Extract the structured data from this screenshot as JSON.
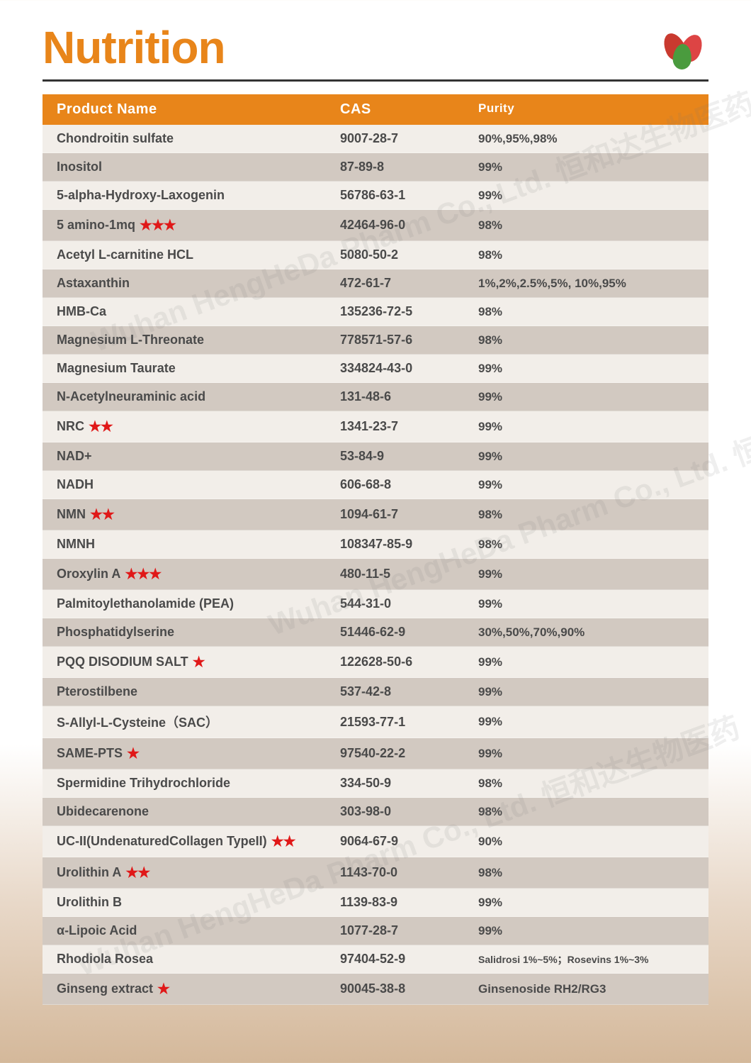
{
  "title": "Nutrition",
  "columns": {
    "name": "Product Name",
    "cas": "CAS",
    "purity": "Purity"
  },
  "colors": {
    "heading": "#e8851a",
    "header_bg": "#e8851a",
    "header_text": "#ffffff",
    "row_even": "#d2c9c1",
    "row_odd": "#f2eee9",
    "text": "#4a4a4a",
    "star": "#e01818",
    "rule": "#333333"
  },
  "typography": {
    "title_fontsize": 64,
    "header_fontsize": 20,
    "row_fontsize": 18
  },
  "star_glyph": "★",
  "watermark_text": "Wuhan HengHeDa Pharm Co., Ltd.  恒和达生物医药",
  "rows": [
    {
      "name": "Chondroitin sulfate",
      "stars": 0,
      "cas": "9007-28-7",
      "purity": "90%,95%,98%"
    },
    {
      "name": "Inositol",
      "stars": 0,
      "cas": "87-89-8",
      "purity": "99%"
    },
    {
      "name": "5-alpha-Hydroxy-Laxogenin",
      "stars": 0,
      "cas": "56786-63-1",
      "purity": "99%"
    },
    {
      "name": "5 amino-1mq",
      "stars": 3,
      "cas": "42464-96-0",
      "purity": "98%"
    },
    {
      "name": "Acetyl L-carnitine HCL",
      "stars": 0,
      "cas": "5080-50-2",
      "purity": "98%"
    },
    {
      "name": "Astaxanthin",
      "stars": 0,
      "cas": "472-61-7",
      "purity": "1%,2%,2.5%,5%, 10%,95%"
    },
    {
      "name": "HMB-Ca",
      "stars": 0,
      "cas": "135236-72-5",
      "purity": "98%"
    },
    {
      "name": "Magnesium L-Threonate",
      "stars": 0,
      "cas": "778571-57-6",
      "purity": "98%"
    },
    {
      "name": "Magnesium Taurate",
      "stars": 0,
      "cas": "334824-43-0",
      "purity": "99%"
    },
    {
      "name": "N-Acetylneuraminic acid",
      "stars": 0,
      "cas": "131-48-6",
      "purity": "99%"
    },
    {
      "name": "NRC",
      "stars": 2,
      "cas": "1341-23-7",
      "purity": "99%"
    },
    {
      "name": "NAD+",
      "stars": 0,
      "cas": "53-84-9",
      "purity": "99%"
    },
    {
      "name": "NADH",
      "stars": 0,
      "cas": "606-68-8",
      "purity": "99%"
    },
    {
      "name": "NMN",
      "stars": 2,
      "cas": "1094-61-7",
      "purity": "98%"
    },
    {
      "name": "NMNH",
      "stars": 0,
      "cas": "108347-85-9",
      "purity": "98%"
    },
    {
      "name": "Oroxylin A",
      "stars": 3,
      "cas": "480-11-5",
      "purity": "99%"
    },
    {
      "name": "Palmitoylethanolamide (PEA)",
      "stars": 0,
      "cas": "544-31-0",
      "purity": "99%"
    },
    {
      "name": "Phosphatidylserine",
      "stars": 0,
      "cas": "51446-62-9",
      "purity": "30%,50%,70%,90%"
    },
    {
      "name": "PQQ DISODIUM SALT",
      "stars": 1,
      "cas": "122628-50-6",
      "purity": "99%"
    },
    {
      "name": "Pterostilbene",
      "stars": 0,
      "cas": "537-42-8",
      "purity": "99%"
    },
    {
      "name": "S-Allyl-L-Cysteine（SAC）",
      "stars": 0,
      "cas": "21593-77-1",
      "purity": "99%"
    },
    {
      "name": "SAME-PTS",
      "stars": 1,
      "cas": "97540-22-2",
      "purity": "99%"
    },
    {
      "name": "Spermidine Trihydrochloride",
      "stars": 0,
      "cas": "334-50-9",
      "purity": "98%"
    },
    {
      "name": "Ubidecarenone",
      "stars": 0,
      "cas": "303-98-0",
      "purity": "98%"
    },
    {
      "name": "UC-II(UndenaturedCollagen TypeII)",
      "stars": 2,
      "cas": "9064-67-9",
      "purity": "90%"
    },
    {
      "name": "Urolithin A",
      "stars": 2,
      "cas": "1143-70-0",
      "purity": "98%"
    },
    {
      "name": "Urolithin B",
      "stars": 0,
      "cas": "1139-83-9",
      "purity": "99%"
    },
    {
      "name": "α-Lipoic Acid",
      "stars": 0,
      "cas": "1077-28-7",
      "purity": "99%"
    },
    {
      "name": "Rhodiola Rosea",
      "stars": 0,
      "cas": "97404-52-9",
      "purity": "Salidrosi 1%~5%；Rosevins 1%~3%",
      "small": true
    },
    {
      "name": "Ginseng extract",
      "stars": 1,
      "cas": "90045-38-8",
      "purity": "Ginsenoside RH2/RG3"
    }
  ]
}
